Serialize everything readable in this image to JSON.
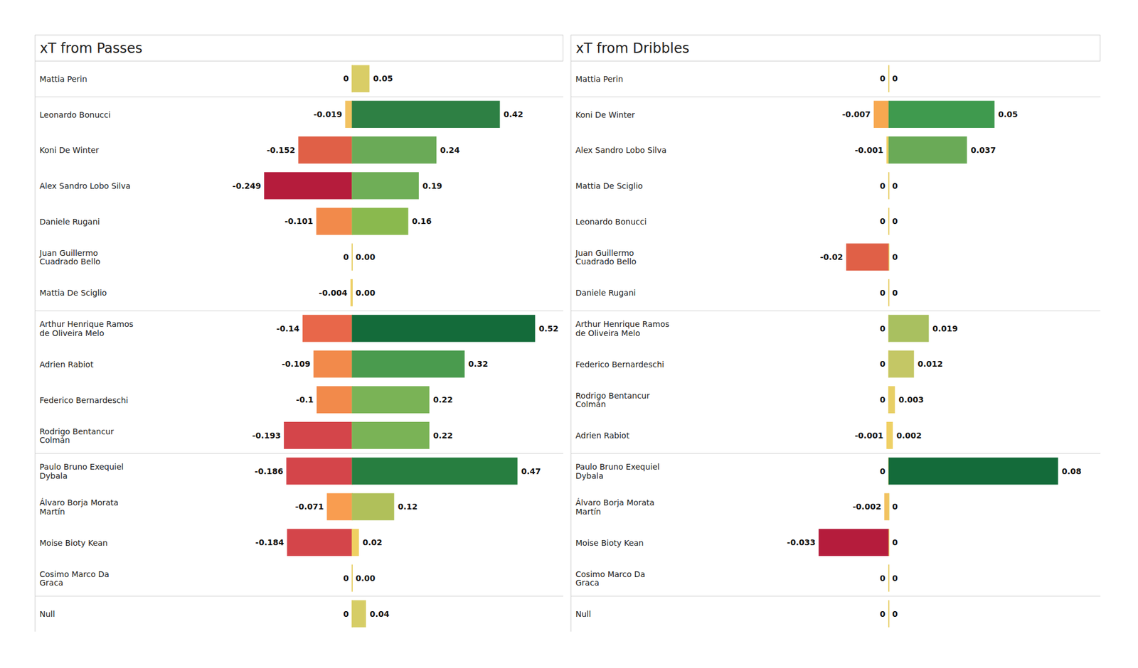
{
  "chart_data": [
    {
      "type": "bar",
      "title": "xT from Passes",
      "orientation": "horizontal",
      "data_labels": true,
      "tick_labels": "y",
      "categories": [
        "Mattia Perin",
        "Leonardo Bonucci",
        "Koni De Winter",
        "Alex Sandro Lobo Silva",
        "Daniele Rugani",
        "Juan Guillermo Cuadrado Bello",
        "Mattia De Sciglio",
        "Arthur Henrique Ramos de Oliveira Melo",
        "Adrien Rabiot",
        "Federico Bernardeschi",
        "Rodrigo Bentancur Colmán",
        "Paulo Bruno Exequiel Dybala",
        "Álvaro Borja Morata Martín",
        "Moise Bioty Kean",
        "Cosimo Marco Da Graca",
        "Null"
      ],
      "groups": [
        1,
        6,
        4,
        4,
        1
      ],
      "xlim": [
        -0.9,
        0.6
      ],
      "series": [
        {
          "values": [
            0,
            -0.019,
            -0.152,
            -0.249,
            -0.101,
            0,
            -0.004,
            -0.14,
            -0.109,
            -0.1,
            -0.193,
            -0.186,
            -0.071,
            -0.184,
            0,
            0
          ],
          "colors": [
            "#e8d06a",
            "#f2c261",
            "#e06047",
            "#b51c3c",
            "#f28a4b",
            "#e8d06a",
            "#f2d064",
            "#e8674a",
            "#f28a4b",
            "#f28a4b",
            "#d4454a",
            "#d4454a",
            "#f99d50",
            "#d4454a",
            "#e8d06a",
            "#e8d06a"
          ]
        },
        {
          "values": [
            0.05,
            0.42,
            0.24,
            0.19,
            0.16,
            0,
            0,
            0.52,
            0.32,
            0.22,
            0.22,
            0.47,
            0.12,
            0.02,
            0,
            0.04
          ],
          "value_labels": [
            "0.05",
            "0.42",
            "0.24",
            "0.19",
            "0.16",
            "0.00",
            "0.00",
            "0.52",
            "0.32",
            "0.22",
            "0.22",
            "0.47",
            "0.12",
            "0.02",
            "0.00",
            "0.04"
          ],
          "colors": [
            "#d9cd66",
            "#2e8044",
            "#6aaa57",
            "#6fae57",
            "#8ab94e",
            "#e8d06a",
            "#e8d06a",
            "#146b3a",
            "#4a9b4e",
            "#7ab356",
            "#7ab356",
            "#277e40",
            "#b0c05a",
            "#efd062",
            "#e8d06a",
            "#d6cd66"
          ]
        }
      ]
    },
    {
      "type": "bar",
      "title": "xT from Dribbles",
      "orientation": "horizontal",
      "data_labels": true,
      "tick_labels": "y",
      "categories": [
        "Mattia Perin",
        "Koni De Winter",
        "Alex Sandro Lobo Silva",
        "Mattia De Sciglio",
        "Leonardo Bonucci",
        "Juan Guillermo Cuadrado Bello",
        "Daniele Rugani",
        "Arthur Henrique Ramos de Oliveira Melo",
        "Federico Bernardeschi",
        "Rodrigo Bentancur Colmán",
        "Adrien Rabiot",
        "Paulo Bruno Exequiel Dybala",
        "Álvaro Borja Morata Martín",
        "Moise Bioty Kean",
        "Cosimo Marco Da Graca",
        "Null"
      ],
      "groups": [
        1,
        6,
        4,
        4,
        1
      ],
      "xlim": [
        -0.15,
        0.1
      ],
      "series": [
        {
          "values": [
            0,
            -0.007,
            -0.001,
            0,
            0,
            -0.02,
            0,
            0,
            0,
            0,
            -0.001,
            0,
            -0.002,
            -0.033,
            0,
            0
          ],
          "colors": [
            "#e8d06a",
            "#f7a850",
            "#f2d064",
            "#e8d06a",
            "#e8d06a",
            "#e06047",
            "#e8d06a",
            "#e8d06a",
            "#e8d06a",
            "#e8d06a",
            "#f2d064",
            "#e8d06a",
            "#f2c261",
            "#b51c3c",
            "#e8d06a",
            "#e8d06a"
          ]
        },
        {
          "values": [
            0,
            0.05,
            0.037,
            0,
            0,
            0,
            0,
            0.019,
            0.012,
            0.003,
            0.002,
            0.08,
            0,
            0,
            0,
            0
          ],
          "colors": [
            "#e8d06a",
            "#3f9a4e",
            "#6aaa57",
            "#e8d06a",
            "#e8d06a",
            "#e8d06a",
            "#e8d06a",
            "#a9c060",
            "#c4c765",
            "#e8cf66",
            "#eed065",
            "#146b3a",
            "#e8d06a",
            "#e8d06a",
            "#e8d06a",
            "#e8d06a"
          ]
        }
      ]
    }
  ]
}
